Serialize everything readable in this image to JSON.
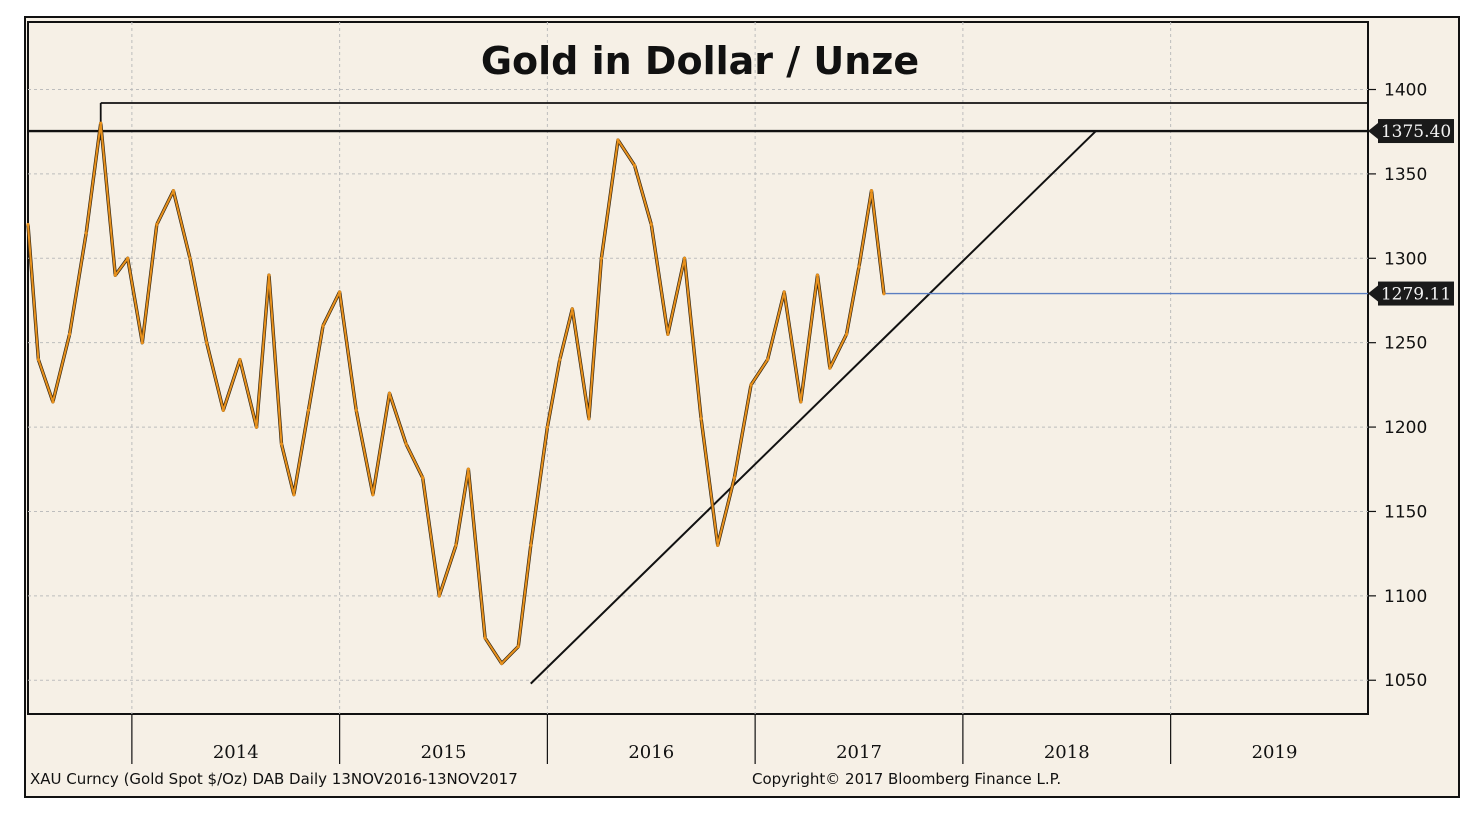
{
  "chart_data": {
    "type": "line",
    "title": "Gold in Dollar / Unze",
    "ylim": [
      1030,
      1440
    ],
    "yticks": [
      1050,
      1100,
      1150,
      1200,
      1250,
      1300,
      1350,
      1400
    ],
    "x_axis_labels": [
      "2014",
      "2015",
      "2016",
      "2017",
      "2018",
      "2019"
    ],
    "series": [
      {
        "color": "#e8911c",
        "x": [
          2013.5,
          2013.55,
          2013.62,
          2013.7,
          2013.78,
          2013.85,
          2013.92,
          2013.98,
          2014.05,
          2014.12,
          2014.2,
          2014.28,
          2014.36,
          2014.44,
          2014.52,
          2014.6,
          2014.66,
          2014.72,
          2014.78,
          2014.85,
          2014.92,
          2015.0,
          2015.08,
          2015.16,
          2015.24,
          2015.32,
          2015.4,
          2015.48,
          2015.56,
          2015.62,
          2015.7,
          2015.78,
          2015.86,
          2015.92,
          2016.0,
          2016.06,
          2016.12,
          2016.2,
          2016.26,
          2016.34,
          2016.42,
          2016.5,
          2016.58,
          2016.66,
          2016.74,
          2016.82,
          2016.9,
          2016.98,
          2017.06,
          2017.14,
          2017.22,
          2017.3,
          2017.36,
          2017.44,
          2017.5,
          2017.56,
          2017.62
        ],
        "values": [
          1320,
          1240,
          1215,
          1255,
          1315,
          1380,
          1290,
          1300,
          1250,
          1320,
          1340,
          1300,
          1250,
          1210,
          1240,
          1200,
          1290,
          1190,
          1160,
          1210,
          1260,
          1280,
          1210,
          1160,
          1220,
          1190,
          1170,
          1100,
          1130,
          1175,
          1075,
          1060,
          1070,
          1130,
          1200,
          1240,
          1270,
          1205,
          1300,
          1370,
          1355,
          1320,
          1255,
          1300,
          1205,
          1130,
          1170,
          1225,
          1240,
          1280,
          1215,
          1290,
          1235,
          1255,
          1295,
          1340,
          1279
        ]
      }
    ],
    "annotations": {
      "horizontal_levels": [
        1392,
        1375.4
      ],
      "trendline": [
        [
          2015.92,
          1048
        ],
        [
          2018.64,
          1375.4
        ]
      ],
      "last_price_line": 1279.11
    },
    "price_tags": [
      "1375.40",
      "1279.11"
    ],
    "footer_left": "XAU Curncy (Gold Spot   $/Oz) DAB  Daily 13NOV2016-13NOV2017",
    "footer_right": "Copyright© 2017 Bloomberg Finance L.P."
  }
}
